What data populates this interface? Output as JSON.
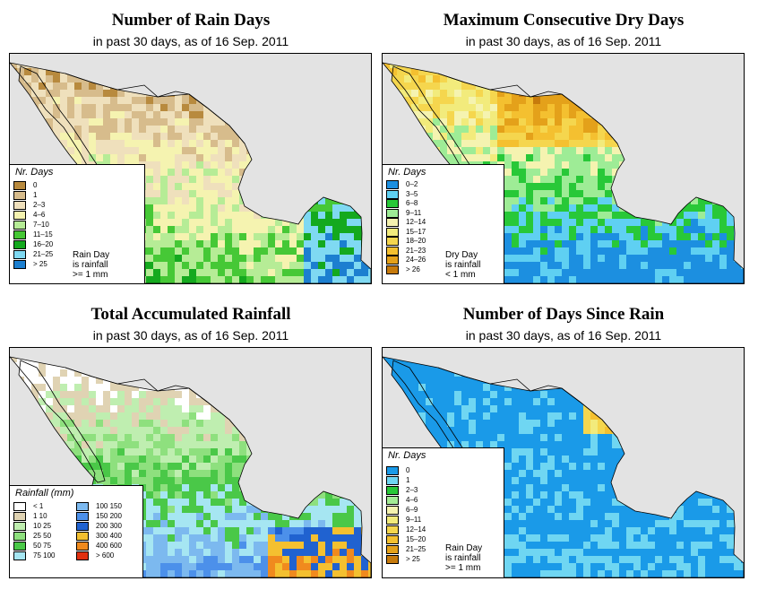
{
  "panels": [
    {
      "id": "rain-days",
      "title": "Number of Rain Days",
      "subtitle": "in past 30 days, as of  16 Sep. 2011",
      "legend": {
        "title": "Nr. Days",
        "note": "Rain Day\nis rainfall\n>= 1 mm",
        "entries": [
          {
            "label": "0",
            "color": "#b88a3e"
          },
          {
            "label": "1",
            "color": "#d7bc8c"
          },
          {
            "label": "2–3",
            "color": "#efe0bc"
          },
          {
            "label": "4–6",
            "color": "#f5f3b0"
          },
          {
            "label": "7–10",
            "color": "#b6ec96"
          },
          {
            "label": "11–15",
            "color": "#46c836"
          },
          {
            "label": "16–20",
            "color": "#14a91e"
          },
          {
            "label": "21–25",
            "color": "#7fd9f2"
          },
          {
            "label": "> 25",
            "color": "#1c7fd0"
          }
        ]
      }
    },
    {
      "id": "dry-days",
      "title": "Maximum Consecutive Dry Days",
      "subtitle": "in past 30 days, as of  16 Sep. 2011",
      "legend": {
        "title": "Nr. Days",
        "note": "Dry Day\nis rainfall\n< 1 mm",
        "entries": [
          {
            "label": "0–2",
            "color": "#1c8fe0"
          },
          {
            "label": "3–5",
            "color": "#5fd0f2"
          },
          {
            "label": "6–8",
            "color": "#28c838"
          },
          {
            "label": "9–11",
            "color": "#9eec96"
          },
          {
            "label": "12–14",
            "color": "#f5f3b0"
          },
          {
            "label": "15–17",
            "color": "#f2eb7c"
          },
          {
            "label": "18–20",
            "color": "#f5d64e"
          },
          {
            "label": "21–23",
            "color": "#f4c030"
          },
          {
            "label": "24–26",
            "color": "#e4a11a"
          },
          {
            "label": "> 26",
            "color": "#c67a0c"
          }
        ]
      }
    },
    {
      "id": "total-rainfall",
      "title": "Total Accumulated Rainfall",
      "subtitle": "in past 30 days, as of  16 Sep. 2011",
      "legend": {
        "title": "Rainfall (mm)",
        "note": "",
        "entries": [
          {
            "label": "< 1",
            "color": "#ffffff"
          },
          {
            "label": "1   10",
            "color": "#e0d3b3"
          },
          {
            "label": "10   25",
            "color": "#bfeeb0"
          },
          {
            "label": "25   50",
            "color": "#8ee07e"
          },
          {
            "label": "50   75",
            "color": "#4ac848"
          },
          {
            "label": "75   100",
            "color": "#a6e6f2"
          },
          {
            "label": "100   150",
            "color": "#7cb9ef"
          },
          {
            "label": "150   200",
            "color": "#4c90ea"
          },
          {
            "label": "200   300",
            "color": "#2062d0"
          },
          {
            "label": "300   400",
            "color": "#f4c030"
          },
          {
            "label": "400   600",
            "color": "#f08a1e"
          },
          {
            "label": "> 600",
            "color": "#e03010"
          }
        ]
      }
    },
    {
      "id": "days-since-rain",
      "title": "Number of Days Since Rain",
      "subtitle": "in past 30 days, as of  16 Sep. 2011",
      "legend": {
        "title": "Nr. Days",
        "note": "Rain Day\nis rainfall\n>= 1 mm",
        "entries": [
          {
            "label": "0",
            "color": "#1a9ae8"
          },
          {
            "label": "1",
            "color": "#6fd6f2"
          },
          {
            "label": "2–3",
            "color": "#28c838"
          },
          {
            "label": "4–6",
            "color": "#a4ec96"
          },
          {
            "label": "6–9",
            "color": "#f5f3b0"
          },
          {
            "label": "9–11",
            "color": "#f2eb7c"
          },
          {
            "label": "12–14",
            "color": "#f5d64e"
          },
          {
            "label": "15–20",
            "color": "#f4c030"
          },
          {
            "label": "21–25",
            "color": "#e4a11a"
          },
          {
            "label": "> 25",
            "color": "#c67a0c"
          }
        ]
      }
    }
  ]
}
